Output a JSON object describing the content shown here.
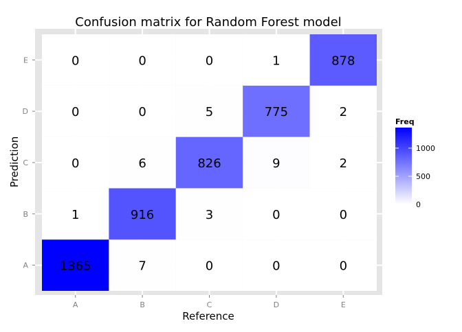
{
  "chart_data": {
    "type": "heatmap",
    "title": "Confusion matrix for Random Forest model",
    "xlabel": "Reference",
    "ylabel": "Prediction",
    "x_categories": [
      "A",
      "B",
      "C",
      "D",
      "E"
    ],
    "y_categories": [
      "A",
      "B",
      "C",
      "D",
      "E"
    ],
    "cells": [
      {
        "reference": "A",
        "prediction": "A",
        "freq": 1365
      },
      {
        "reference": "B",
        "prediction": "A",
        "freq": 7
      },
      {
        "reference": "C",
        "prediction": "A",
        "freq": 0
      },
      {
        "reference": "D",
        "prediction": "A",
        "freq": 0
      },
      {
        "reference": "E",
        "prediction": "A",
        "freq": 0
      },
      {
        "reference": "A",
        "prediction": "B",
        "freq": 1
      },
      {
        "reference": "B",
        "prediction": "B",
        "freq": 916
      },
      {
        "reference": "C",
        "prediction": "B",
        "freq": 3
      },
      {
        "reference": "D",
        "prediction": "B",
        "freq": 0
      },
      {
        "reference": "E",
        "prediction": "B",
        "freq": 0
      },
      {
        "reference": "A",
        "prediction": "C",
        "freq": 0
      },
      {
        "reference": "B",
        "prediction": "C",
        "freq": 6
      },
      {
        "reference": "C",
        "prediction": "C",
        "freq": 826
      },
      {
        "reference": "D",
        "prediction": "C",
        "freq": 9
      },
      {
        "reference": "E",
        "prediction": "C",
        "freq": 2
      },
      {
        "reference": "A",
        "prediction": "D",
        "freq": 0
      },
      {
        "reference": "B",
        "prediction": "D",
        "freq": 0
      },
      {
        "reference": "C",
        "prediction": "D",
        "freq": 5
      },
      {
        "reference": "D",
        "prediction": "D",
        "freq": 775
      },
      {
        "reference": "E",
        "prediction": "D",
        "freq": 2
      },
      {
        "reference": "A",
        "prediction": "E",
        "freq": 0
      },
      {
        "reference": "B",
        "prediction": "E",
        "freq": 0
      },
      {
        "reference": "C",
        "prediction": "E",
        "freq": 0
      },
      {
        "reference": "D",
        "prediction": "E",
        "freq": 1
      },
      {
        "reference": "E",
        "prediction": "E",
        "freq": 878
      }
    ],
    "legend": {
      "title": "Freq",
      "ticks": [
        "0",
        "500",
        "1000"
      ],
      "tick_values": [
        0,
        500,
        1000
      ],
      "range": [
        0,
        1365
      ],
      "position": "right",
      "low_color": "#ffffff",
      "high_color": "#0000ff"
    },
    "colors": {
      "panel_background": "#e5e5e5",
      "grid": "#ffffff",
      "cell_text": "#000000"
    },
    "grid": true
  }
}
